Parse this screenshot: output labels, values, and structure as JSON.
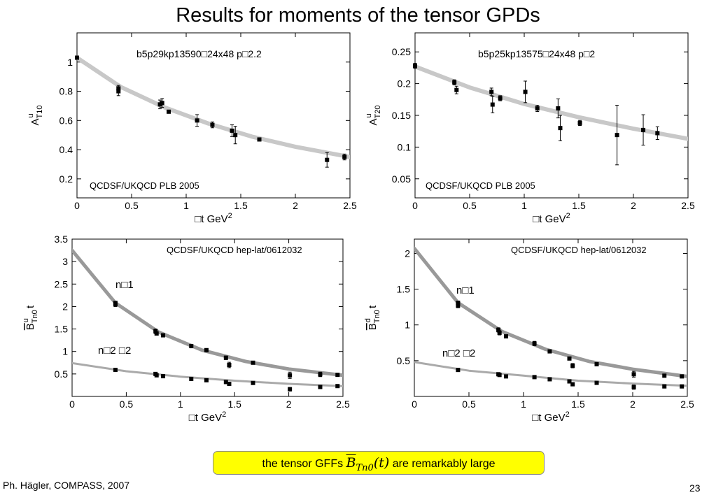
{
  "slide": {
    "title": "Results for moments of the tensor GPDs",
    "footer_prefix": "the tensor GFFs ",
    "footer_math_B": "B",
    "footer_math_sub": "Tn0",
    "footer_math_arg": "(t)",
    "footer_suffix": " are remarkably large",
    "author": "Ph. Hägler, COMPASS, 2007",
    "page_number": "23"
  },
  "chart_data": [
    {
      "type": "scatter",
      "title": "",
      "lattice_label": "b5p29kp13590□24x48   p□2.2",
      "reference": "QCDSF/UKQCD PLB 2005",
      "xlabel": "□t  GeV",
      "xlabel_sup": "2",
      "ylabel": "A",
      "ylabel_sup": "u",
      "ylabel_sub": "T10",
      "xlim": [
        0,
        2.5
      ],
      "ylim": [
        0.07,
        1.2
      ],
      "xticks": [
        "0",
        "0.5",
        "1",
        "1.5",
        "2",
        "2.5"
      ],
      "yticks": [
        "0.2",
        "0.4",
        "0.6",
        "0.8",
        "1"
      ],
      "fit_band": {
        "x": [
          0,
          0.4,
          0.8,
          1.2,
          1.6,
          2.0,
          2.5
        ],
        "y": [
          1.03,
          0.83,
          0.69,
          0.58,
          0.49,
          0.42,
          0.35
        ],
        "color": "#c8c8c8"
      },
      "series": [
        {
          "points": [
            {
              "x": 0.0,
              "y": 1.03,
              "err": 0.01
            },
            {
              "x": 0.38,
              "y": 0.8,
              "err": 0.03
            },
            {
              "x": 0.38,
              "y": 0.82,
              "err": 0.02
            },
            {
              "x": 0.76,
              "y": 0.71,
              "err": 0.03
            },
            {
              "x": 0.78,
              "y": 0.72,
              "err": 0.03
            },
            {
              "x": 0.84,
              "y": 0.66,
              "err": 0.01
            },
            {
              "x": 1.1,
              "y": 0.6,
              "err": 0.04
            },
            {
              "x": 1.24,
              "y": 0.57,
              "err": 0.02
            },
            {
              "x": 1.42,
              "y": 0.53,
              "err": 0.04
            },
            {
              "x": 1.45,
              "y": 0.5,
              "err": 0.06
            },
            {
              "x": 1.67,
              "y": 0.47,
              "err": 0.01
            },
            {
              "x": 2.29,
              "y": 0.33,
              "err": 0.05
            },
            {
              "x": 2.45,
              "y": 0.35,
              "err": 0.02
            }
          ]
        }
      ]
    },
    {
      "type": "scatter",
      "title": "",
      "lattice_label": "b5p25kp13575□24x48   p□2",
      "reference": "QCDSF/UKQCD PLB 2005",
      "xlabel": "□t  GeV",
      "xlabel_sup": "2",
      "ylabel": "A",
      "ylabel_sup": "u",
      "ylabel_sub": "T20",
      "xlim": [
        0,
        2.5
      ],
      "ylim": [
        0.02,
        0.28
      ],
      "xticks": [
        "0",
        "0.5",
        "1",
        "1.5",
        "2",
        "2.5"
      ],
      "yticks": [
        "0.05",
        "0.1",
        "0.15",
        "0.2",
        "0.25"
      ],
      "fit_band": {
        "x": [
          0,
          0.5,
          1.0,
          1.5,
          2.0,
          2.5
        ],
        "y": [
          0.227,
          0.194,
          0.168,
          0.147,
          0.129,
          0.113
        ],
        "color": "#c8c8c8"
      },
      "series": [
        {
          "points": [
            {
              "x": 0.0,
              "y": 0.228,
              "err": 0.004
            },
            {
              "x": 0.36,
              "y": 0.202,
              "err": 0.004
            },
            {
              "x": 0.38,
              "y": 0.19,
              "err": 0.006
            },
            {
              "x": 0.7,
              "y": 0.187,
              "err": 0.006
            },
            {
              "x": 0.71,
              "y": 0.167,
              "err": 0.013
            },
            {
              "x": 0.78,
              "y": 0.177,
              "err": 0.004
            },
            {
              "x": 1.01,
              "y": 0.187,
              "err": 0.017
            },
            {
              "x": 1.12,
              "y": 0.161,
              "err": 0.005
            },
            {
              "x": 1.31,
              "y": 0.161,
              "err": 0.015
            },
            {
              "x": 1.33,
              "y": 0.13,
              "err": 0.02
            },
            {
              "x": 1.51,
              "y": 0.138,
              "err": 0.004
            },
            {
              "x": 1.85,
              "y": 0.119,
              "err": 0.047
            },
            {
              "x": 2.09,
              "y": 0.127,
              "err": 0.024
            },
            {
              "x": 2.22,
              "y": 0.122,
              "err": 0.01
            }
          ]
        }
      ]
    },
    {
      "type": "scatter",
      "title": "",
      "reference": "QCDSF/UKQCD hep-lat/0612032",
      "xlabel": "□t  GeV",
      "xlabel_sup": "2",
      "ylabel": "B",
      "ylabel_sup": "u",
      "ylabel_sub": "Tn0",
      "ylabel_tail": " t",
      "xlim": [
        0,
        2.5
      ],
      "ylim": [
        0.0,
        3.5
      ],
      "xticks": [
        "0",
        "0.5",
        "1",
        "1.5",
        "2",
        "2.5"
      ],
      "yticks": [
        "0.5",
        "1",
        "1.5",
        "2",
        "2.5",
        "3",
        "3.5"
      ],
      "series": [
        {
          "name": "n□1",
          "fit_band": {
            "x": [
              0,
              0.4,
              0.8,
              1.2,
              1.6,
              2.0,
              2.5
            ],
            "y": [
              3.25,
              2.08,
              1.43,
              1.03,
              0.78,
              0.61,
              0.47
            ],
            "color": "#999999"
          },
          "points": [
            {
              "x": 0.4,
              "y": 2.05,
              "err": 0.05
            },
            {
              "x": 0.4,
              "y": 2.08,
              "err": 0.03
            },
            {
              "x": 0.77,
              "y": 1.45,
              "err": 0.05
            },
            {
              "x": 0.78,
              "y": 1.4,
              "err": 0.03
            },
            {
              "x": 0.84,
              "y": 1.36,
              "err": 0.02
            },
            {
              "x": 1.1,
              "y": 1.12,
              "err": 0.04
            },
            {
              "x": 1.24,
              "y": 1.03,
              "err": 0.02
            },
            {
              "x": 1.42,
              "y": 0.86,
              "err": 0.04
            },
            {
              "x": 1.45,
              "y": 0.7,
              "err": 0.06
            },
            {
              "x": 1.67,
              "y": 0.75,
              "err": 0.02
            },
            {
              "x": 2.01,
              "y": 0.47,
              "err": 0.07
            },
            {
              "x": 2.29,
              "y": 0.49,
              "err": 0.05
            },
            {
              "x": 2.45,
              "y": 0.48,
              "err": 0.03
            }
          ]
        },
        {
          "name": "n□2   □2",
          "fit_band": {
            "x": [
              0,
              0.5,
              1.0,
              1.5,
              2.0,
              2.5
            ],
            "y": [
              0.74,
              0.56,
              0.44,
              0.35,
              0.28,
              0.23
            ],
            "color": "#aaaaaa"
          },
          "points": [
            {
              "x": 0.4,
              "y": 0.59,
              "err": 0.02
            },
            {
              "x": 0.77,
              "y": 0.5,
              "err": 0.02
            },
            {
              "x": 0.78,
              "y": 0.47,
              "err": 0.02
            },
            {
              "x": 0.84,
              "y": 0.45,
              "err": 0.01
            },
            {
              "x": 1.1,
              "y": 0.39,
              "err": 0.02
            },
            {
              "x": 1.24,
              "y": 0.36,
              "err": 0.01
            },
            {
              "x": 1.42,
              "y": 0.32,
              "err": 0.02
            },
            {
              "x": 1.45,
              "y": 0.28,
              "err": 0.02
            },
            {
              "x": 1.67,
              "y": 0.3,
              "err": 0.01
            },
            {
              "x": 2.01,
              "y": 0.16,
              "err": 0.04
            },
            {
              "x": 2.29,
              "y": 0.21,
              "err": 0.02
            },
            {
              "x": 2.45,
              "y": 0.23,
              "err": 0.01
            }
          ]
        }
      ]
    },
    {
      "type": "scatter",
      "title": "",
      "reference": "QCDSF/UKQCD hep-lat/0612032",
      "xlabel": "□t  GeV",
      "xlabel_sup": "2",
      "ylabel": "B",
      "ylabel_sup": "d",
      "ylabel_sub": "Tn0",
      "ylabel_tail": " t",
      "xlim": [
        0,
        2.5
      ],
      "ylim": [
        0.0,
        2.2
      ],
      "xticks": [
        "0",
        "0.5",
        "1",
        "1.5",
        "2",
        "2.5"
      ],
      "yticks": [
        "0.5",
        "1",
        "1.5",
        "2"
      ],
      "series": [
        {
          "name": "n□1",
          "fit_band": {
            "x": [
              0,
              0.4,
              0.8,
              1.2,
              1.6,
              2.0,
              2.5
            ],
            "y": [
              2.07,
              1.31,
              0.91,
              0.66,
              0.49,
              0.38,
              0.28
            ],
            "color": "#999999"
          },
          "points": [
            {
              "x": 0.4,
              "y": 1.27,
              "err": 0.03
            },
            {
              "x": 0.4,
              "y": 1.31,
              "err": 0.02
            },
            {
              "x": 0.77,
              "y": 0.93,
              "err": 0.03
            },
            {
              "x": 0.78,
              "y": 0.89,
              "err": 0.03
            },
            {
              "x": 0.84,
              "y": 0.84,
              "err": 0.02
            },
            {
              "x": 1.1,
              "y": 0.74,
              "err": 0.03
            },
            {
              "x": 1.24,
              "y": 0.63,
              "err": 0.01
            },
            {
              "x": 1.42,
              "y": 0.53,
              "err": 0.02
            },
            {
              "x": 1.45,
              "y": 0.43,
              "err": 0.03
            },
            {
              "x": 1.67,
              "y": 0.45,
              "err": 0.01
            },
            {
              "x": 2.01,
              "y": 0.31,
              "err": 0.04
            },
            {
              "x": 2.29,
              "y": 0.29,
              "err": 0.02
            },
            {
              "x": 2.45,
              "y": 0.28,
              "err": 0.02
            }
          ]
        },
        {
          "name": "n□2   □2",
          "fit_band": {
            "x": [
              0,
              0.5,
              1.0,
              1.5,
              2.0,
              2.5
            ],
            "y": [
              0.48,
              0.36,
              0.29,
              0.22,
              0.18,
              0.15
            ],
            "color": "#aaaaaa"
          },
          "points": [
            {
              "x": 0.4,
              "y": 0.37,
              "err": 0.02
            },
            {
              "x": 0.77,
              "y": 0.31,
              "err": 0.02
            },
            {
              "x": 0.78,
              "y": 0.3,
              "err": 0.02
            },
            {
              "x": 0.84,
              "y": 0.28,
              "err": 0.01
            },
            {
              "x": 1.1,
              "y": 0.27,
              "err": 0.01
            },
            {
              "x": 1.24,
              "y": 0.24,
              "err": 0.01
            },
            {
              "x": 1.42,
              "y": 0.21,
              "err": 0.01
            },
            {
              "x": 1.45,
              "y": 0.17,
              "err": 0.01
            },
            {
              "x": 1.67,
              "y": 0.19,
              "err": 0.01
            },
            {
              "x": 2.01,
              "y": 0.13,
              "err": 0.03
            },
            {
              "x": 2.29,
              "y": 0.14,
              "err": 0.01
            },
            {
              "x": 2.45,
              "y": 0.14,
              "err": 0.01
            }
          ]
        }
      ]
    }
  ]
}
